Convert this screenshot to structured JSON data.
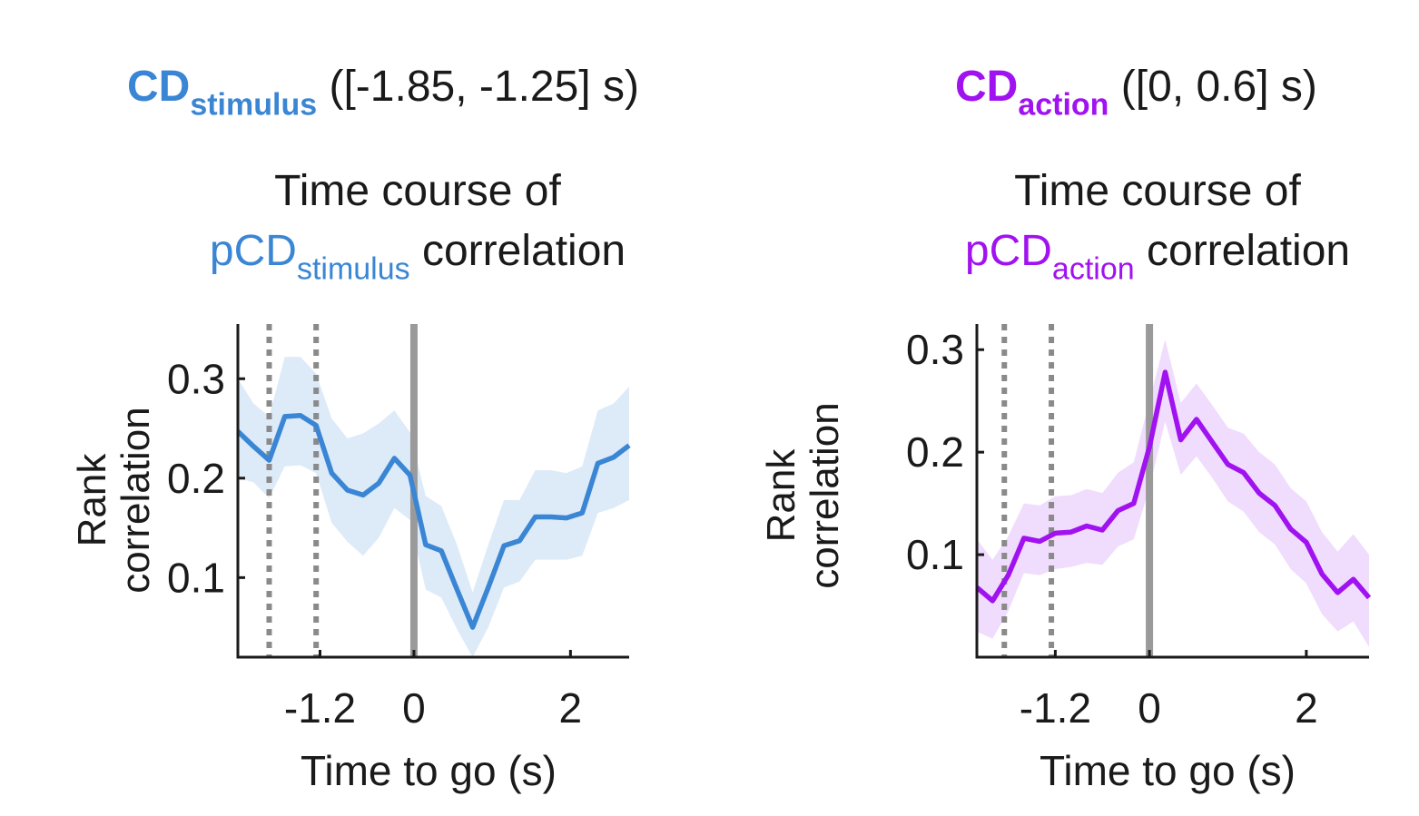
{
  "panels": [
    {
      "header_cd": "CD",
      "header_sub": "stimulus",
      "header_range": "([-1.85, -1.25] s)",
      "subtitle_line1": "Time course of",
      "subtitle_pcd": "pCD",
      "subtitle_sub": "stimulus",
      "subtitle_rest": "correlation",
      "ylabel_line1": "Rank",
      "ylabel_line2": "correlation",
      "xlabel": "Time to go (s)",
      "color": "#3a86d4",
      "band_color": "#ddeaf8"
    },
    {
      "header_cd": "CD",
      "header_sub": "action",
      "header_range": "([0, 0.6] s)",
      "subtitle_line1": "Time course of",
      "subtitle_pcd": "pCD",
      "subtitle_sub": "action",
      "subtitle_rest": "correlation",
      "ylabel_line1": "Rank",
      "ylabel_line2": "correlation",
      "xlabel": "Time to go (s)",
      "color": "#a012f0",
      "band_color": "#f0dcfc"
    }
  ],
  "chart_data": [
    {
      "type": "line",
      "title": "Time course of pCDstimulus correlation",
      "xlabel": "Time to go (s)",
      "ylabel": "Rank correlation",
      "xlim": [
        -2.25,
        2.75
      ],
      "ylim": [
        0.02,
        0.355
      ],
      "xticks": [
        -1.2,
        0,
        2
      ],
      "xtick_labels": [
        "-1.2",
        "0",
        "2"
      ],
      "yticks": [
        0.1,
        0.2,
        0.3
      ],
      "ytick_labels": [
        "0.1",
        "0.2",
        "0.3"
      ],
      "vlines_dotted": [
        -1.85,
        -1.25
      ],
      "vline_solid": 0,
      "x": [
        -2.25,
        -2.05,
        -1.85,
        -1.65,
        -1.45,
        -1.25,
        -1.05,
        -0.85,
        -0.65,
        -0.45,
        -0.25,
        -0.05,
        0.15,
        0.35,
        0.55,
        0.75,
        0.95,
        1.15,
        1.35,
        1.55,
        1.75,
        1.95,
        2.15,
        2.35,
        2.55,
        2.75
      ],
      "series": [
        {
          "name": "mean",
          "values": [
            0.247,
            0.232,
            0.218,
            0.262,
            0.263,
            0.253,
            0.205,
            0.188,
            0.183,
            0.195,
            0.22,
            0.203,
            0.133,
            0.127,
            0.088,
            0.05,
            0.09,
            0.132,
            0.137,
            0.161,
            0.161,
            0.16,
            0.165,
            0.215,
            0.221,
            0.233
          ]
        },
        {
          "name": "upper",
          "values": [
            0.3,
            0.275,
            0.262,
            0.322,
            0.322,
            0.305,
            0.26,
            0.24,
            0.245,
            0.255,
            0.268,
            0.246,
            0.182,
            0.172,
            0.133,
            0.085,
            0.133,
            0.178,
            0.178,
            0.208,
            0.208,
            0.205,
            0.212,
            0.268,
            0.275,
            0.292
          ]
        },
        {
          "name": "lower",
          "values": [
            0.2,
            0.196,
            0.18,
            0.212,
            0.213,
            0.205,
            0.155,
            0.136,
            0.122,
            0.14,
            0.17,
            0.158,
            0.088,
            0.08,
            0.048,
            0.02,
            0.05,
            0.09,
            0.096,
            0.118,
            0.118,
            0.118,
            0.122,
            0.165,
            0.17,
            0.178
          ]
        }
      ]
    },
    {
      "type": "line",
      "title": "Time course of pCDaction correlation",
      "xlabel": "Time to go (s)",
      "ylabel": "Rank correlation",
      "xlim": [
        -2.2,
        2.8
      ],
      "ylim": [
        0.0,
        0.325
      ],
      "xticks": [
        -1.2,
        0,
        2
      ],
      "xtick_labels": [
        "-1.2",
        "0",
        "2"
      ],
      "yticks": [
        0.1,
        0.2,
        0.3
      ],
      "ytick_labels": [
        "0.1",
        "0.2",
        "0.3"
      ],
      "vlines_dotted": [
        -1.85,
        -1.25
      ],
      "vline_solid": 0,
      "x": [
        -2.2,
        -2.0,
        -1.8,
        -1.6,
        -1.4,
        -1.2,
        -1.0,
        -0.8,
        -0.6,
        -0.4,
        -0.2,
        0.0,
        0.2,
        0.4,
        0.6,
        0.8,
        1.0,
        1.2,
        1.4,
        1.6,
        1.8,
        2.0,
        2.2,
        2.4,
        2.6,
        2.8
      ],
      "series": [
        {
          "name": "mean",
          "values": [
            0.068,
            0.055,
            0.08,
            0.116,
            0.113,
            0.121,
            0.122,
            0.128,
            0.124,
            0.143,
            0.15,
            0.205,
            0.278,
            0.212,
            0.232,
            0.21,
            0.188,
            0.18,
            0.16,
            0.148,
            0.125,
            0.112,
            0.081,
            0.063,
            0.076,
            0.058
          ]
        },
        {
          "name": "upper",
          "values": [
            0.115,
            0.095,
            0.118,
            0.15,
            0.148,
            0.157,
            0.158,
            0.164,
            0.16,
            0.18,
            0.19,
            0.25,
            0.31,
            0.248,
            0.267,
            0.246,
            0.224,
            0.218,
            0.2,
            0.188,
            0.165,
            0.152,
            0.122,
            0.103,
            0.12,
            0.1
          ]
        },
        {
          "name": "lower",
          "values": [
            0.025,
            0.018,
            0.045,
            0.082,
            0.08,
            0.086,
            0.088,
            0.092,
            0.09,
            0.108,
            0.115,
            0.165,
            0.23,
            0.178,
            0.196,
            0.175,
            0.152,
            0.142,
            0.122,
            0.11,
            0.086,
            0.072,
            0.042,
            0.025,
            0.035,
            0.01
          ]
        }
      ]
    }
  ]
}
